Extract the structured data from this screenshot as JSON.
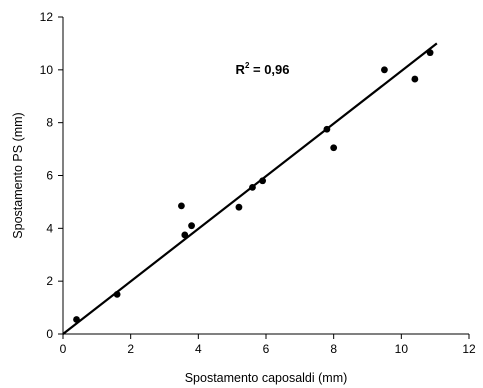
{
  "chart_data": {
    "type": "scatter",
    "title": "",
    "xlabel": "Spostamento caposaldi (mm)",
    "ylabel": "Spostamento PS (mm)",
    "xlim": [
      0,
      12
    ],
    "ylim": [
      0,
      12
    ],
    "xticks": [
      0,
      2,
      4,
      6,
      8,
      10,
      12
    ],
    "yticks": [
      0,
      2,
      4,
      6,
      8,
      10,
      12
    ],
    "grid": false,
    "legend": "none",
    "marker_color": "#000000",
    "points": [
      {
        "x": 0.4,
        "y": 0.55
      },
      {
        "x": 1.6,
        "y": 1.5
      },
      {
        "x": 3.5,
        "y": 4.85
      },
      {
        "x": 3.6,
        "y": 3.75
      },
      {
        "x": 3.8,
        "y": 4.1
      },
      {
        "x": 5.2,
        "y": 4.8
      },
      {
        "x": 5.6,
        "y": 5.55
      },
      {
        "x": 5.9,
        "y": 5.8
      },
      {
        "x": 7.8,
        "y": 7.75
      },
      {
        "x": 8.0,
        "y": 7.05
      },
      {
        "x": 9.5,
        "y": 10.0
      },
      {
        "x": 10.4,
        "y": 9.65
      },
      {
        "x": 10.85,
        "y": 10.65
      }
    ],
    "trendline": {
      "x1": 0.0,
      "y1": 0.0,
      "x2": 11.05,
      "y2": 11.0
    },
    "annotation": {
      "text": "R",
      "superscript": "2",
      "suffix": " = 0,96",
      "x": 5.1,
      "y": 10.0
    }
  }
}
